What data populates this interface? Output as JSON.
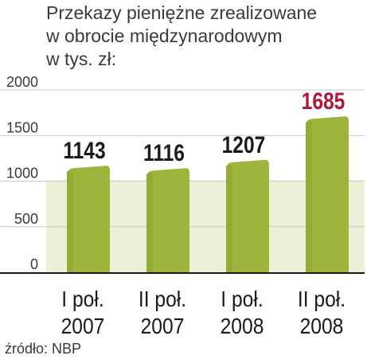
{
  "title_lines": [
    "Przekazy pieniężne zrealizowane",
    "w obrocie międzynarodowym",
    "w tys. zł:"
  ],
  "source": "źródło: NBP",
  "colors": {
    "bar": "#9db53c",
    "bar_top": "#b7cb5a",
    "bar_shadow": "#7f9a2a",
    "band": "#dde5b8",
    "axis": "#1a1a1a",
    "grid": "#c9c9c9",
    "label": "#1a1a1a",
    "label_highlight": "#b0183c"
  },
  "chart_data": {
    "type": "bar",
    "categories": [
      "I poł. 2007",
      "II poł. 2007",
      "I poł. 2008",
      "II poł. 2008"
    ],
    "category_lines": [
      [
        "I poł.",
        "2007"
      ],
      [
        "II poł.",
        "2007"
      ],
      [
        "I poł.",
        "2008"
      ],
      [
        "II poł.",
        "2008"
      ]
    ],
    "values": [
      1143,
      1116,
      1207,
      1685
    ],
    "value_labels": [
      "1143",
      "1116",
      "1207",
      "1685"
    ],
    "highlight_index": 3,
    "ylim": [
      0,
      2000
    ],
    "yticks": [
      0,
      500,
      1000,
      1500,
      2000
    ],
    "ytick_labels": [
      "0",
      "500",
      "1000",
      "1500",
      "2000"
    ],
    "grid": true,
    "xlabel": "",
    "ylabel": ""
  }
}
